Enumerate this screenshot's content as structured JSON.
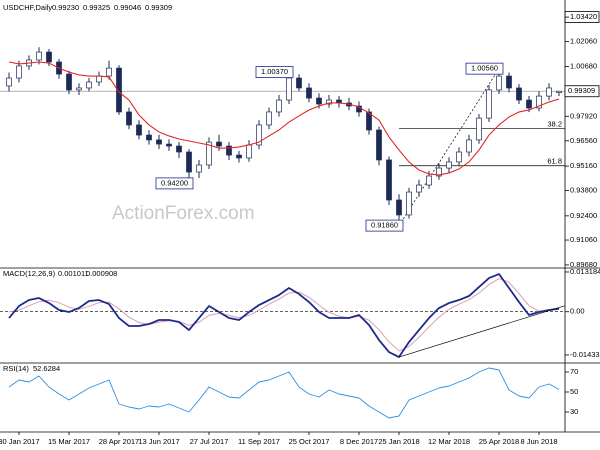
{
  "chart_data": {
    "type": "candlestick",
    "title": "USDCHF,Daily",
    "header_labels": [
      "0.99230",
      "0.99325",
      "0.99046",
      "0.99309"
    ],
    "watermark": "ActionForex.com",
    "categories": [
      null,
      "30 Jan 2017",
      null,
      null,
      null,
      null,
      "15 Mar 2017",
      null,
      null,
      null,
      null,
      "28 Apr 2017",
      null,
      null,
      null,
      "13 Jun 2017",
      null,
      null,
      null,
      null,
      "27 Jul 2017",
      null,
      null,
      null,
      null,
      "11 Sep 2017",
      null,
      null,
      null,
      null,
      "25 Oct 2017",
      null,
      null,
      null,
      null,
      "8 Dec 2017",
      null,
      null,
      null,
      "25 Jan 2018",
      null,
      null,
      null,
      null,
      "12 Mar 2018",
      null,
      null,
      null,
      null,
      "25 Apr 2018",
      null,
      null,
      null,
      "8 Jun 2018",
      null,
      null
    ],
    "open": [
      0.996,
      1.0004,
      1.0071,
      1.0104,
      1.0148,
      1.0093,
      1.0026,
      0.9938,
      0.9949,
      0.9982,
      1.0015,
      1.0059,
      0.9816,
      0.9744,
      0.9688,
      0.9661,
      0.9638,
      0.9627,
      0.9594,
      0.9483,
      0.9522,
      0.9649,
      0.9627,
      0.9577,
      0.9561,
      0.9633,
      0.9744,
      0.9816,
      0.9882,
      1.0004,
      0.9949,
      0.9893,
      0.986,
      0.9882,
      0.9866,
      0.9849,
      0.9816,
      0.9716,
      0.955,
      0.9328,
      0.9245,
      0.9372,
      0.9411,
      0.9461,
      0.9505,
      0.9539,
      0.9594,
      0.9661,
      0.9782,
      0.9938,
      1.0015,
      0.9949,
      0.9882,
      0.9838,
      0.9904,
      0.9923
    ],
    "high": [
      1.0035,
      1.01,
      1.013,
      1.0175,
      1.0165,
      1.011,
      1.0045,
      0.9975,
      1.0005,
      1.004,
      1.01,
      1.0075,
      0.984,
      0.977,
      0.9715,
      0.969,
      0.9665,
      0.965,
      0.961,
      0.955,
      0.9675,
      0.969,
      0.965,
      0.96,
      0.966,
      0.977,
      0.984,
      0.991,
      1.0037,
      1.0025,
      0.9975,
      0.992,
      0.991,
      0.9905,
      0.9895,
      0.9875,
      0.9835,
      0.9735,
      0.957,
      0.936,
      0.9395,
      0.944,
      0.949,
      0.953,
      0.9565,
      0.962,
      0.969,
      0.9805,
      0.9965,
      1.0056,
      1.0035,
      0.997,
      0.9905,
      0.993,
      0.9975,
      0.99325
    ],
    "low": [
      0.993,
      0.998,
      1.005,
      1.008,
      1.007,
      1.0,
      0.9915,
      0.991,
      0.993,
      0.996,
      0.9995,
      0.98,
      0.972,
      0.9665,
      0.9635,
      0.961,
      0.96,
      0.956,
      0.942,
      0.945,
      0.95,
      0.96,
      0.955,
      0.9535,
      0.954,
      0.961,
      0.972,
      0.979,
      0.986,
      0.993,
      0.987,
      0.9835,
      0.984,
      0.984,
      0.9825,
      0.979,
      0.969,
      0.952,
      0.93,
      0.9186,
      0.9225,
      0.9345,
      0.939,
      0.944,
      0.948,
      0.9515,
      0.957,
      0.964,
      0.976,
      0.9915,
      0.9925,
      0.986,
      0.9815,
      0.982,
      0.988,
      0.99046
    ],
    "close": [
      1.0004,
      1.0071,
      1.0104,
      1.0148,
      1.0093,
      1.0026,
      0.9938,
      0.9949,
      0.9982,
      1.0015,
      1.0059,
      0.9816,
      0.9744,
      0.9688,
      0.9661,
      0.9638,
      0.9627,
      0.9594,
      0.9483,
      0.9522,
      0.9649,
      0.9627,
      0.9577,
      0.9561,
      0.9633,
      0.9744,
      0.9816,
      0.9882,
      1.0004,
      0.9949,
      0.9893,
      0.986,
      0.9882,
      0.9866,
      0.9849,
      0.9816,
      0.9716,
      0.955,
      0.9328,
      0.9245,
      0.9372,
      0.9411,
      0.9461,
      0.9505,
      0.9539,
      0.9594,
      0.9661,
      0.9782,
      0.9938,
      1.0015,
      0.9949,
      0.9882,
      0.9838,
      0.9904,
      0.9949,
      0.99309
    ],
    "up_color": "#ffffff",
    "down_color": "#1d2a55",
    "ma": {
      "color": "#e0282a",
      "values": [
        1.0093,
        1.0082,
        1.0087,
        1.0093,
        1.0087,
        1.0059,
        1.0037,
        1.0021,
        1.0015,
        1.0015,
        1.001,
        0.9926,
        0.9882,
        0.9799,
        0.9744,
        0.9705,
        0.9683,
        0.9666,
        0.9655,
        0.9644,
        0.9633,
        0.9616,
        0.9616,
        0.9622,
        0.9633,
        0.9649,
        0.9683,
        0.9716,
        0.976,
        0.9794,
        0.9827,
        0.9849,
        0.9866,
        0.9866,
        0.986,
        0.9843,
        0.981,
        0.9771,
        0.9677,
        0.9605,
        0.9539,
        0.9494,
        0.9472,
        0.9467,
        0.9478,
        0.95,
        0.9539,
        0.9605,
        0.9688,
        0.9744,
        0.9788,
        0.9816,
        0.9827,
        0.9849,
        0.9871,
        0.9888
      ]
    },
    "ylim": [
      0.8951,
      1.042
    ],
    "yticks": [
      {
        "value": 1.0342,
        "label": "1.03420"
      },
      {
        "value": 1.0206,
        "label": "1.02060"
      },
      {
        "value": 1.0068,
        "label": "1.00680"
      },
      {
        "value": 0.9792,
        "label": "0.97920"
      },
      {
        "value": 0.9656,
        "label": "0.96560"
      },
      {
        "value": 0.9516,
        "label": "0.95160"
      },
      {
        "value": 0.938,
        "label": "0.93800"
      },
      {
        "value": 0.924,
        "label": "0.92400"
      },
      {
        "value": 0.9106,
        "label": "0.91060"
      },
      {
        "value": 0.8968,
        "label": "0.89680"
      }
    ],
    "annotations": [
      {
        "value": 1.0037,
        "label": "1.00370"
      },
      {
        "value": 0.942,
        "label": "0.94200"
      },
      {
        "value": 1.0056,
        "label": "1.00560"
      },
      {
        "value": 0.9186,
        "label": "0.91860"
      }
    ],
    "fib_levels": [
      {
        "value": 0.9724,
        "label": "38.2"
      },
      {
        "value": 0.9518,
        "label": "61.8"
      }
    ],
    "macd": {
      "title": "MACD(12,26,9)",
      "color": "#1c2a8c",
      "signal_color": "#d9a0b0",
      "values": [
        -0.00209,
        0.00189,
        0.00388,
        0.00454,
        0.00288,
        0.00056,
        -0.0001,
        0.00123,
        0.00355,
        0.00388,
        0.00255,
        -0.00209,
        -0.00474,
        -0.00474,
        -0.00408,
        -0.00275,
        -0.00275,
        -0.00342,
        -0.00607,
        -0.00209,
        0.00189,
        -0.0001,
        -0.00209,
        -0.00275,
        -0.0001,
        0.00222,
        0.00388,
        0.00554,
        0.00786,
        0.00587,
        0.00322,
        -0.0001,
        -0.00209,
        -0.00209,
        -0.00209,
        -0.00109,
        -0.00441,
        -0.00938,
        -0.01336,
        -0.01502,
        -0.01005,
        -0.00607,
        -0.00209,
        0.00123,
        0.00288,
        0.00388,
        0.00521,
        0.00819,
        0.01117,
        0.0125,
        0.00786,
        0.00322,
        -0.00109,
        -0.0001,
        0.00056,
        0.001011
      ],
      "signal": [
        0,
        0.0005,
        0.002,
        0.0033,
        0.0038,
        0.003,
        0.0015,
        0.0008,
        0.0018,
        0.003,
        0.0032,
        0.001,
        -0.0018,
        -0.0036,
        -0.0042,
        -0.0035,
        -0.003,
        -0.0032,
        -0.0045,
        -0.0035,
        -0.0012,
        -0.0005,
        -0.0012,
        -0.002,
        -0.0012,
        0.0005,
        0.0025,
        0.0042,
        0.0062,
        0.0065,
        0.0048,
        0.0022,
        -0.0002,
        -0.0015,
        -0.002,
        -0.0015,
        -0.0028,
        -0.006,
        -0.01,
        -0.013,
        -0.0115,
        -0.0085,
        -0.005,
        -0.0018,
        0.0008,
        0.0025,
        0.004,
        0.0062,
        0.009,
        0.011,
        0.0098,
        0.006,
        0.002,
        0.0002,
        0.0005,
        0.000908
      ],
      "ylim": [
        -0.017,
        0.0145
      ],
      "yticks": [
        0.013184,
        {
          "value": 0,
          "label": "0.00"
        },
        -0.014339
      ]
    },
    "rsi": {
      "title": "RSI(14)",
      "color": "#2f8ee0",
      "values": [
        55,
        62,
        60,
        66,
        55,
        48,
        42,
        48,
        54,
        58,
        62,
        38,
        35,
        33,
        36,
        35,
        38,
        34,
        30,
        42,
        55,
        50,
        45,
        44,
        52,
        60,
        62,
        66,
        70,
        55,
        48,
        45,
        52,
        48,
        46,
        44,
        36,
        30,
        24,
        26,
        42,
        46,
        50,
        54,
        56,
        60,
        64,
        70,
        74,
        72,
        52,
        46,
        44,
        55,
        58,
        52.6284
      ],
      "ylim": [
        10,
        79
      ],
      "yticks": [
        70,
        50,
        30
      ]
    }
  }
}
